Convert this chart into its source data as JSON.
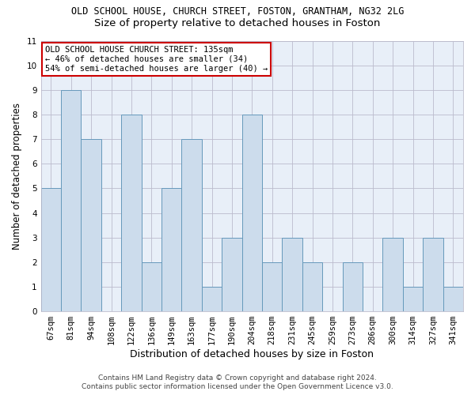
{
  "title": "OLD SCHOOL HOUSE, CHURCH STREET, FOSTON, GRANTHAM, NG32 2LG",
  "subtitle": "Size of property relative to detached houses in Foston",
  "xlabel": "Distribution of detached houses by size in Foston",
  "ylabel": "Number of detached properties",
  "categories": [
    "67sqm",
    "81sqm",
    "94sqm",
    "108sqm",
    "122sqm",
    "136sqm",
    "149sqm",
    "163sqm",
    "177sqm",
    "190sqm",
    "204sqm",
    "218sqm",
    "231sqm",
    "245sqm",
    "259sqm",
    "273sqm",
    "286sqm",
    "300sqm",
    "314sqm",
    "327sqm",
    "341sqm"
  ],
  "values": [
    5,
    9,
    7,
    0,
    8,
    2,
    5,
    7,
    1,
    3,
    8,
    2,
    3,
    2,
    0,
    2,
    0,
    3,
    1,
    3,
    1
  ],
  "bar_color": "#ccdcec",
  "bar_edge_color": "#6699bb",
  "annotation_text": "OLD SCHOOL HOUSE CHURCH STREET: 135sqm\n← 46% of detached houses are smaller (34)\n54% of semi-detached houses are larger (40) →",
  "annotation_box_color": "#ffffff",
  "annotation_box_edge": "#cc0000",
  "footer_line1": "Contains HM Land Registry data © Crown copyright and database right 2024.",
  "footer_line2": "Contains public sector information licensed under the Open Government Licence v3.0.",
  "ylim": [
    0,
    11
  ],
  "yticks": [
    0,
    1,
    2,
    3,
    4,
    5,
    6,
    7,
    8,
    9,
    10,
    11
  ],
  "bg_color": "#ffffff",
  "plot_bg_color": "#e8eff8",
  "grid_color": "#bbbbcc",
  "title_fontsize": 8.5,
  "subtitle_fontsize": 9.5,
  "xlabel_fontsize": 9,
  "ylabel_fontsize": 8.5,
  "tick_fontsize": 7.5,
  "annotation_fontsize": 7.5,
  "footer_fontsize": 6.5
}
